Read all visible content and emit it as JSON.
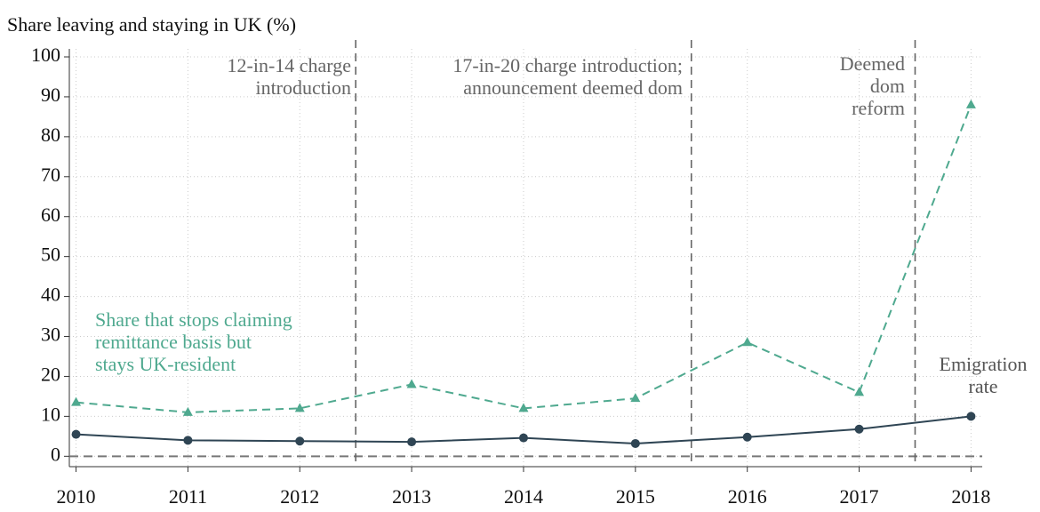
{
  "chart_data": {
    "type": "line",
    "title": "Share leaving and staying in UK (%)",
    "x": [
      2010,
      2011,
      2012,
      2013,
      2014,
      2015,
      2016,
      2017,
      2018
    ],
    "xlim": [
      2009.94,
      2018.1
    ],
    "xticks": [
      2010,
      2011,
      2012,
      2013,
      2014,
      2015,
      2016,
      2017,
      2018
    ],
    "ylim": [
      -2.6,
      102
    ],
    "yticks": [
      0,
      10,
      20,
      30,
      40,
      50,
      60,
      70,
      80,
      90,
      100
    ],
    "grid": true,
    "hline": 0,
    "series": [
      {
        "label_lines": [
          "Share that stops claiming",
          "remittance basis but",
          "stays UK-resident"
        ],
        "color": "#4fa98f",
        "dash": true,
        "marker": "triangle",
        "values": [
          13.5,
          11,
          12,
          18,
          12,
          14.5,
          28.5,
          16,
          88
        ]
      },
      {
        "label_lines": [
          "Emigration",
          "rate"
        ],
        "color": "#2f4554",
        "dash": false,
        "marker": "circle",
        "values": [
          5.5,
          4,
          3.8,
          3.6,
          4.6,
          3.2,
          4.8,
          6.8,
          10
        ]
      }
    ],
    "vlines": [
      {
        "x": 2012.5,
        "label_lines": [
          "12-in-14 charge",
          "introduction"
        ]
      },
      {
        "x": 2015.5,
        "label_lines": [
          "17-in-20 charge introduction;",
          "announcement deemed dom"
        ]
      },
      {
        "x": 2017.5,
        "label_lines": [
          "Deemed",
          "dom",
          "reform"
        ]
      }
    ]
  }
}
